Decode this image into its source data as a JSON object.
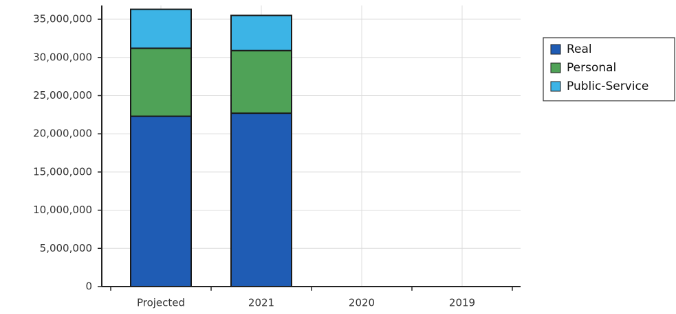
{
  "chart_data": {
    "type": "stacked_bar",
    "categories": [
      "Projected",
      "2021",
      "2020",
      "2019"
    ],
    "series": [
      {
        "name": "Real",
        "color": "#1f5cb4",
        "values": [
          22300000,
          22700000,
          0,
          0
        ]
      },
      {
        "name": "Personal",
        "color": "#4fa257",
        "values": [
          8900000,
          8200000,
          0,
          0
        ]
      },
      {
        "name": "Public-Service",
        "color": "#3cb4e6",
        "values": [
          5100000,
          4600000,
          0,
          0
        ]
      }
    ],
    "ylim": [
      0,
      36800000
    ],
    "yticks": [
      {
        "value": 0,
        "label": "0"
      },
      {
        "value": 5000000,
        "label": "5,000,000"
      },
      {
        "value": 10000000,
        "label": "10,000,000"
      },
      {
        "value": 15000000,
        "label": "15,000,000"
      },
      {
        "value": 20000000,
        "label": "20,000,000"
      },
      {
        "value": 25000000,
        "label": "25,000,000"
      },
      {
        "value": 30000000,
        "label": "30,000,000"
      },
      {
        "value": 35000000,
        "label": "35,000,000"
      }
    ],
    "grid": true
  }
}
